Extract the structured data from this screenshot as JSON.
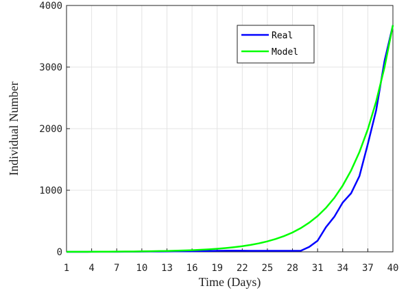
{
  "chart_data": {
    "type": "line",
    "xlabel": "Time (Days)",
    "ylabel": "Individual Number",
    "x": [
      1,
      2,
      3,
      4,
      5,
      6,
      7,
      8,
      9,
      10,
      11,
      12,
      13,
      14,
      15,
      16,
      17,
      18,
      19,
      20,
      21,
      22,
      23,
      24,
      25,
      26,
      27,
      28,
      29,
      30,
      31,
      32,
      33,
      34,
      35,
      36,
      37,
      38,
      39,
      40
    ],
    "series": [
      {
        "name": "Real",
        "color": "#0000ff",
        "values": [
          0,
          0,
          0,
          1,
          1,
          1,
          2,
          3,
          3,
          4,
          5,
          6,
          7,
          8,
          9,
          10,
          12,
          14,
          16,
          18,
          20,
          18,
          17,
          17,
          17,
          17,
          17,
          17,
          18,
          80,
          180,
          400,
          570,
          800,
          950,
          1230,
          1750,
          2300,
          3100,
          3680
        ]
      },
      {
        "name": "Model",
        "color": "#00ff00",
        "values": [
          1,
          1,
          2,
          2,
          3,
          3,
          4,
          5,
          6,
          8,
          10,
          12,
          14,
          18,
          22,
          27,
          33,
          40,
          50,
          61,
          75,
          92,
          113,
          138,
          170,
          209,
          256,
          314,
          386,
          474,
          581,
          714,
          876,
          1076,
          1320,
          1621,
          1989,
          2442,
          2998,
          3680
        ]
      }
    ],
    "xlim": [
      1,
      40
    ],
    "xticks": [
      1,
      4,
      7,
      10,
      13,
      16,
      19,
      22,
      25,
      28,
      31,
      34,
      37,
      40
    ],
    "ylim": [
      0,
      4000
    ],
    "yticks": [
      0,
      1000,
      2000,
      3000,
      4000
    ],
    "grid": true,
    "legend": "top"
  }
}
